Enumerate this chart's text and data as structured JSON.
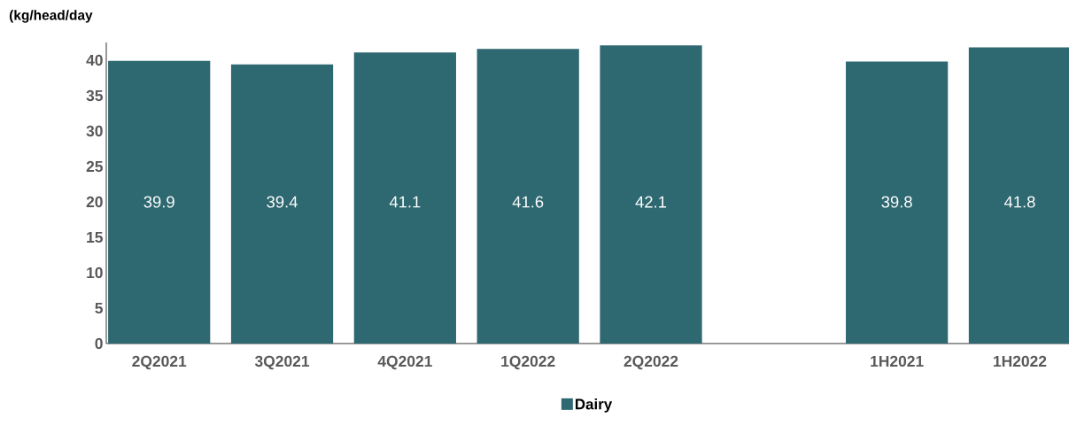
{
  "chart_data": {
    "type": "bar",
    "ylabel": "(kg/head/day",
    "categories": [
      "2Q2021",
      "3Q2021",
      "4Q2021",
      "1Q2022",
      "2Q2022",
      null,
      "1H2021",
      "1H2022"
    ],
    "series": [
      {
        "name": "Dairy",
        "color": "#2e6870",
        "values": [
          39.9,
          39.4,
          41.1,
          41.6,
          42.1,
          null,
          39.8,
          41.8
        ]
      }
    ],
    "ylim": [
      0,
      42.5
    ],
    "yticks": [
      0,
      5,
      10,
      15,
      20,
      25,
      30,
      35,
      40
    ],
    "data_labels": true,
    "grid": false,
    "legend": "bottom"
  }
}
